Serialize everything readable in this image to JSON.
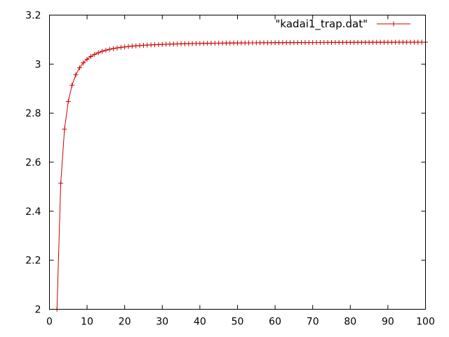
{
  "chart_data": {
    "type": "line",
    "title": "",
    "xlabel": "",
    "ylabel": "",
    "xlim": [
      0,
      100
    ],
    "ylim": [
      2,
      3.2
    ],
    "x_ticks": [
      0,
      10,
      20,
      30,
      40,
      50,
      60,
      70,
      80,
      90,
      100
    ],
    "y_ticks": [
      2,
      2.2,
      2.4,
      2.6,
      2.8,
      3,
      3.2
    ],
    "x_tick_labels": [
      "0",
      "10",
      "20",
      "30",
      "40",
      "50",
      "60",
      "70",
      "80",
      "90",
      "100"
    ],
    "y_tick_labels": [
      "2",
      "2.2",
      "2.4",
      "2.6",
      "2.8",
      "3",
      "3.2"
    ],
    "grid": false,
    "legend_position": "top-right",
    "marker": "plus",
    "series": [
      {
        "name": "\"kadai1_trap.dat\"",
        "color": "#cc0000",
        "x": [
          2,
          3,
          4,
          5,
          6,
          7,
          8,
          9,
          10,
          11,
          12,
          13,
          14,
          15,
          16,
          17,
          18,
          19,
          20,
          21,
          22,
          23,
          24,
          25,
          26,
          27,
          28,
          29,
          30,
          31,
          32,
          33,
          34,
          35,
          36,
          37,
          38,
          39,
          40,
          41,
          42,
          43,
          44,
          45,
          46,
          47,
          48,
          49,
          50,
          51,
          52,
          53,
          54,
          55,
          56,
          57,
          58,
          59,
          60,
          61,
          62,
          63,
          64,
          65,
          66,
          67,
          68,
          69,
          70,
          71,
          72,
          73,
          74,
          75,
          76,
          77,
          78,
          79,
          80,
          81,
          82,
          83,
          84,
          85,
          86,
          87,
          88,
          89,
          90,
          91,
          92,
          93,
          94,
          95,
          96,
          97,
          98,
          99,
          100
        ],
        "y": [
          2,
          2.5141,
          2.7346,
          2.8479,
          2.9141,
          2.9563,
          2.9849,
          3.0052,
          3.02,
          3.0312,
          3.0399,
          3.0467,
          3.0522,
          3.0567,
          3.0604,
          3.0635,
          3.0661,
          3.0683,
          3.0702,
          3.0719,
          3.0734,
          3.0746,
          3.0758,
          3.0768,
          3.0777,
          3.0785,
          3.0792,
          3.0799,
          3.0805,
          3.081,
          3.0815,
          3.082,
          3.0824,
          3.0828,
          3.0832,
          3.0835,
          3.0838,
          3.0841,
          3.0844,
          3.0846,
          3.0849,
          3.0851,
          3.0853,
          3.0855,
          3.0857,
          3.0859,
          3.086,
          3.0862,
          3.0863,
          3.0865,
          3.0866,
          3.0867,
          3.0869,
          3.087,
          3.0871,
          3.0872,
          3.0873,
          3.0874,
          3.0875,
          3.0876,
          3.0877,
          3.0878,
          3.0878,
          3.0879,
          3.088,
          3.0881,
          3.0881,
          3.0882,
          3.0883,
          3.0883,
          3.0884,
          3.0884,
          3.0885,
          3.0886,
          3.0886,
          3.0887,
          3.0887,
          3.0888,
          3.0888,
          3.0888,
          3.0889,
          3.0889,
          3.089,
          3.089,
          3.089,
          3.0891,
          3.0891,
          3.0892,
          3.0892,
          3.0892,
          3.0893,
          3.0893,
          3.0893,
          3.0893,
          3.0894,
          3.0894,
          3.0894,
          3.0895,
          3.0895
        ]
      }
    ]
  }
}
